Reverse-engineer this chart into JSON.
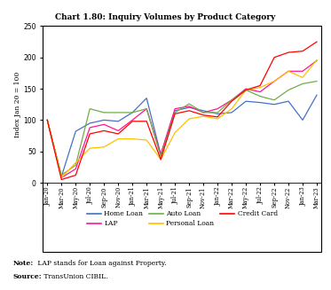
{
  "title": "Chart 1.80: Inquiry Volumes by Product Category",
  "ylabel": "Index Jan 20 = 100",
  "ylim": [
    0,
    250
  ],
  "yticks": [
    0,
    50,
    100,
    150,
    200,
    250
  ],
  "note_bold": "Note:",
  "note_rest": " LAP stands for Loan against Property.",
  "source_bold": "Source:",
  "source_rest": " TransUnion CIBIL.",
  "x_labels": [
    "Jan-20",
    "Mar-20",
    "May-20",
    "Jul-20",
    "Sep-20",
    "Nov-20",
    "Jan-21",
    "Mar-21",
    "May-21",
    "Jul-21",
    "Sep-21",
    "Nov-21",
    "Jan-22",
    "Mar-22",
    "May-22",
    "Jul-22",
    "Sep-22",
    "Nov-22",
    "Jan-23",
    "Mar-23"
  ],
  "series": {
    "Home Loan": {
      "color": "#4472C4",
      "data": [
        100,
        10,
        82,
        95,
        100,
        98,
        112,
        135,
        45,
        115,
        120,
        115,
        110,
        112,
        130,
        128,
        125,
        130,
        100,
        140
      ]
    },
    "LAP": {
      "color": "#FF1493",
      "data": [
        100,
        8,
        22,
        88,
        93,
        83,
        100,
        118,
        45,
        118,
        122,
        112,
        118,
        132,
        150,
        145,
        162,
        178,
        178,
        195
      ]
    },
    "Auto Loan": {
      "color": "#70AD47",
      "data": [
        100,
        12,
        28,
        118,
        112,
        112,
        112,
        118,
        42,
        112,
        126,
        112,
        112,
        132,
        148,
        138,
        132,
        148,
        158,
        162
      ]
    },
    "Personal Loan": {
      "color": "#FFC000",
      "data": [
        100,
        8,
        32,
        55,
        57,
        70,
        70,
        68,
        37,
        80,
        102,
        106,
        102,
        118,
        148,
        152,
        162,
        178,
        168,
        196
      ]
    },
    "Credit Card": {
      "color": "#FF0000",
      "data": [
        100,
        5,
        12,
        78,
        83,
        78,
        98,
        98,
        37,
        110,
        115,
        108,
        105,
        130,
        148,
        155,
        200,
        208,
        210,
        225
      ]
    }
  },
  "legend_order": [
    "Home Loan",
    "LAP",
    "Auto Loan",
    "Personal Loan",
    "Credit Card"
  ]
}
